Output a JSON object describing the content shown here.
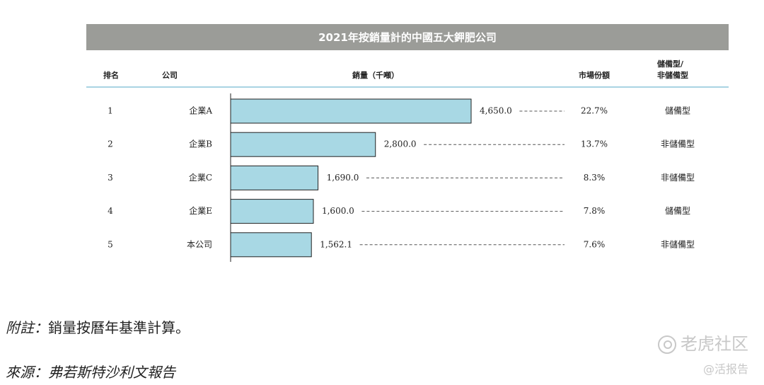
{
  "chart_data": {
    "type": "bar",
    "orientation": "horizontal",
    "title": "2021年按銷量計的中國五大鉀肥公司",
    "columns": {
      "rank": "排名",
      "company": "公司",
      "sales": "銷量（千噸）",
      "share": "市場份額",
      "type_line1": "儲備型/",
      "type_line2": "非儲備型"
    },
    "categories": [
      "企業A",
      "企業B",
      "企業C",
      "企業E",
      "本公司"
    ],
    "ranks": [
      "1",
      "2",
      "3",
      "4",
      "5"
    ],
    "values": [
      4650.0,
      2800.0,
      1690.0,
      1600.0,
      1562.1
    ],
    "value_labels": [
      "4,650.0",
      "2,800.0",
      "1,690.0",
      "1,600.0",
      "1,562.1"
    ],
    "shares": [
      "22.7%",
      "13.7%",
      "8.3%",
      "7.8%",
      "7.6%"
    ],
    "types": [
      "儲備型",
      "非儲備型",
      "非儲備型",
      "儲備型",
      "非儲備型"
    ],
    "bar_color": "#a8d8e4",
    "bar_stroke": "#222222",
    "grid": false,
    "legend": "none"
  },
  "notes": {
    "note_label": "附註：",
    "note_text": "銷量按曆年基準計算。",
    "source_label": "來源：",
    "source_text": "弗若斯特沙利文報告"
  },
  "watermark": {
    "brand": "老虎社区",
    "handle": "@活报告"
  },
  "colors": {
    "title_bg": "#9b9c98",
    "header_rule": "#a9d4e3"
  }
}
